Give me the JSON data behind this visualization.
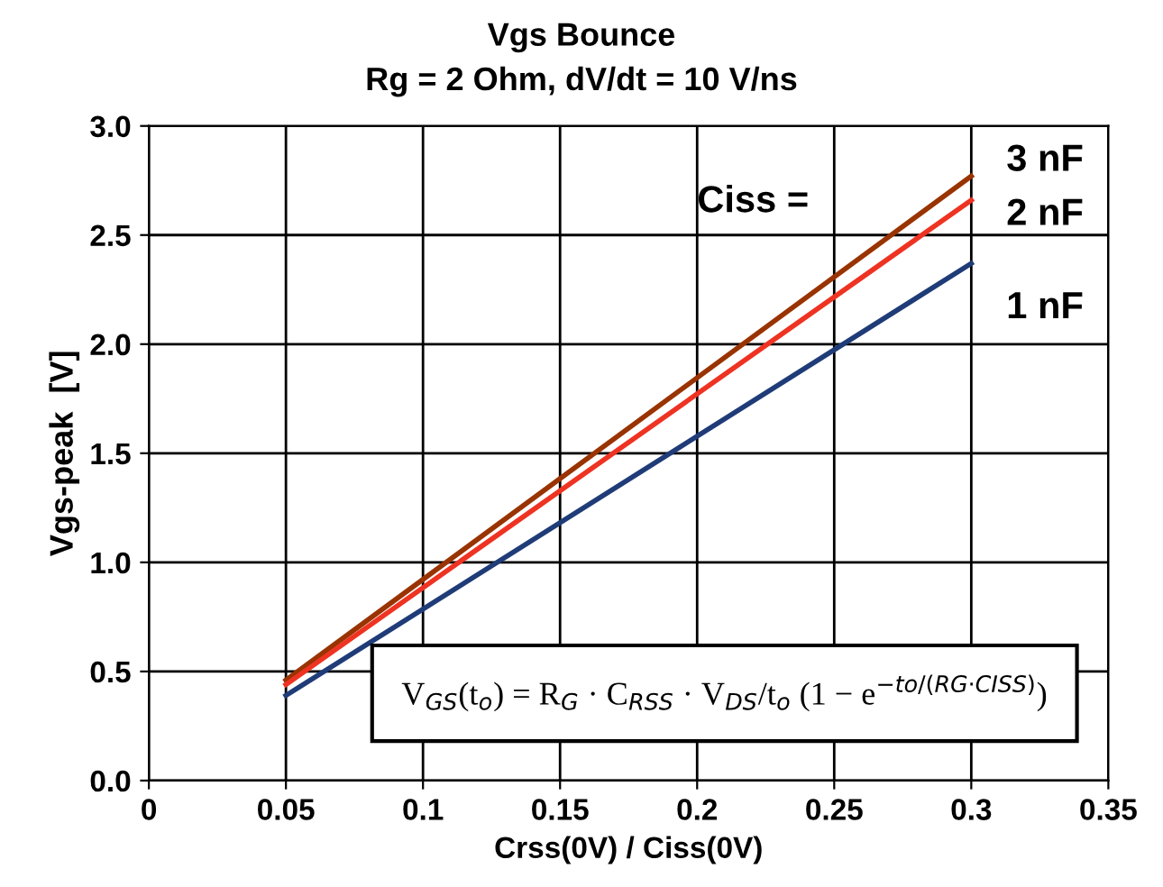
{
  "chart_data": {
    "type": "line",
    "title": "Vgs Bounce",
    "subtitle": "Rg = 2 Ohm, dV/dt = 10 V/ns",
    "xlabel": "Crss(0V) / Ciss(0V)",
    "ylabel": "Vgs-peak  [V]",
    "x": [
      0.05,
      0.3
    ],
    "series": [
      {
        "name": "3 nF",
        "color": "#993300",
        "values": [
          0.46,
          2.77
        ]
      },
      {
        "name": "2 nF",
        "color": "#ee3322",
        "values": [
          0.44,
          2.66
        ]
      },
      {
        "name": "1 nF",
        "color": "#1f3c78",
        "values": [
          0.39,
          2.37
        ]
      }
    ],
    "annotations": [
      "Ciss =",
      "V$_{GS}$(t$_{o}$) = R$_{G}$ · C$_{RSS}$ · V$_{DS}$/t$_{o}$ (1 − e$^{−to/(RG·CISS)}$)"
    ],
    "xlim": [
      0,
      0.35
    ],
    "xticks": [
      0,
      0.05,
      0.1,
      0.15,
      0.2,
      0.25,
      0.3,
      0.35
    ],
    "ylim": [
      0,
      3.0
    ],
    "yticks": [
      {
        "value": 0,
        "label": "0.0"
      },
      0.5,
      {
        "value": 1,
        "label": "1.0"
      },
      1.5,
      {
        "value": 2,
        "label": "2.0"
      },
      2.5,
      {
        "value": 3,
        "label": "3.0"
      }
    ],
    "grid": true,
    "legend": false,
    "marker": "none",
    "line_style": "solid"
  }
}
